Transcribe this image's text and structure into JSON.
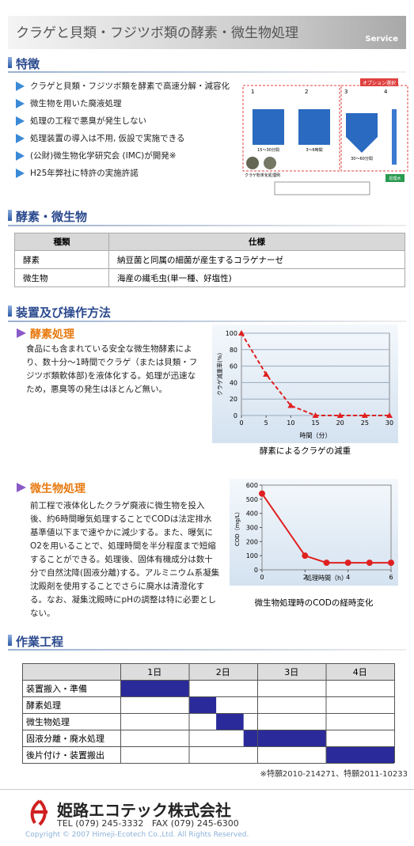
{
  "header": {
    "title": "クラゲと貝類・フジツボ類の酵素・微生物処理",
    "tag": "Service"
  },
  "features": {
    "heading": "特徴",
    "items": [
      "クラゲと貝類・フジツボ類を酵素で高速分解・減容化",
      "微生物を用いた廃液処理",
      "処理の工程で悪臭が発生しない",
      "処理装置の導入は不用, 仮設で実施できる",
      "(公財)微生物化学研究会 (IMC)が開発※",
      "H25年弊社に特許の実施許諾"
    ],
    "diagram": {
      "option": "オプション選択",
      "steps": [
        "1",
        "2",
        "3",
        "4"
      ],
      "times": [
        "15～30分間",
        "3～6時間",
        "30～60分間"
      ],
      "output": "処理水",
      "example": "クラゲ粉末化処理例"
    }
  },
  "spec": {
    "heading": "酵素・微生物",
    "table": {
      "header": [
        "種類",
        "仕様"
      ],
      "rows": [
        [
          "酵素",
          "納豆菌と同属の細菌が産生するコラゲナーゼ"
        ],
        [
          "微生物",
          "海産の繊毛虫(単一種、好塩性)"
        ]
      ]
    }
  },
  "method": {
    "heading": "装置及び操作方法",
    "enzyme": {
      "title": "酵素処理",
      "text": "食品にも含まれている安全な微生物酵素により、数十分～1時間でクラゲ（または貝類・フジツボ類軟体部)を液体化する。処理が迅速なため，悪臭等の発生はほとんど無い。"
    },
    "microbe": {
      "title": "微生物処理",
      "text": "前工程で液体化したクラゲ廃液に微生物を投入後、約6時間曝気処理することでCODは法定排水基準値以下まで速やかに減少する。また、曝気にO2を用いることで、処理時間を半分程度まで短縮することができる。処理後、固体有機成分は数十分で自然沈降(固液分離)する。アルミニウム系凝集沈殿剤を使用することでさらに廃水は清澄化する。なお、凝集沈殿時にpHの調整は特に必要としない。"
    }
  },
  "chart_data": [
    {
      "type": "line",
      "caption": "酵素によるクラゲの減重",
      "x_label": "時間（分）",
      "y_label": "クラゲ減重率(%)",
      "x": [
        0,
        5,
        10,
        15,
        20,
        25,
        30
      ],
      "values": [
        100,
        50,
        12,
        0,
        0,
        0,
        0
      ],
      "color": "#e02020",
      "marker": "triangle",
      "dashed": true,
      "xlim": [
        0,
        30
      ],
      "xticks": [
        0,
        5,
        10,
        15,
        20,
        25,
        30
      ],
      "ylim": [
        0,
        100
      ],
      "yticks": [
        0,
        20,
        40,
        60,
        80,
        100
      ],
      "grid": true
    },
    {
      "type": "line",
      "caption": "微生物処理時のCODの経時変化",
      "x_label": "処理時間（h）",
      "y_label": "COD（mg/L）",
      "x": [
        0,
        2,
        3,
        4,
        5,
        6
      ],
      "values": [
        540,
        100,
        50,
        50,
        50,
        50
      ],
      "color": "#e02020",
      "marker": "circle",
      "dashed": false,
      "xlim": [
        0,
        6
      ],
      "xticks": [
        0,
        2,
        4,
        6
      ],
      "ylim": [
        0,
        600
      ],
      "yticks": [
        0,
        100,
        200,
        300,
        400,
        500,
        600
      ],
      "grid": false
    }
  ],
  "schedule": {
    "heading": "作業工程",
    "days": [
      "1日",
      "2日",
      "3日",
      "4日"
    ],
    "tasks": [
      {
        "name": "装置搬入・準備",
        "start": 0,
        "end": 1
      },
      {
        "name": "酵素処理",
        "start": 1,
        "end": 1.4
      },
      {
        "name": "微生物処理",
        "start": 1.4,
        "end": 1.8
      },
      {
        "name": "固液分離・廃水処理",
        "start": 1.8,
        "end": 3
      },
      {
        "name": "後片付け・装置搬出",
        "start": 3,
        "end": 4
      }
    ],
    "note": "※特願2010-214271、特願2011-10233"
  },
  "footer": {
    "company": "姫路エコテック株式会社",
    "contact": "TEL (079) 245-3332   FAX (079) 245-6300",
    "copyright": "Copyright © 2007 Himeji-Ecotech Co.,Ltd. All Rights Reserved."
  }
}
